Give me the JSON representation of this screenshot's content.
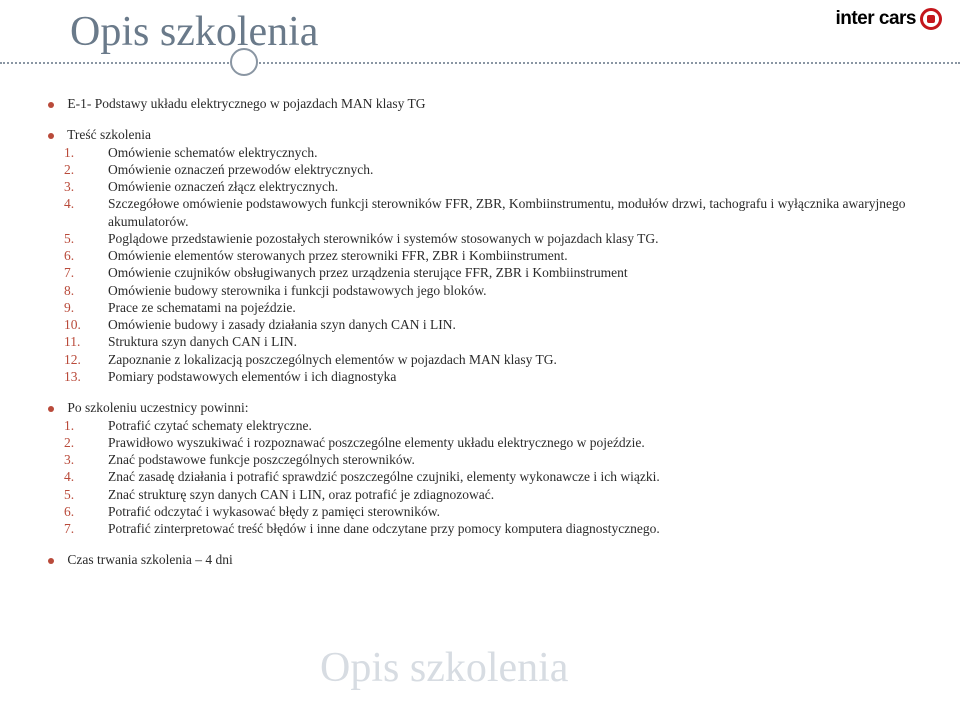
{
  "logo": {
    "text": "inter cars"
  },
  "title": "Opis szkolenia",
  "watermark": "Opis szkolenia",
  "course_heading": "E-1- Podstawy układu elektrycznego w pojazdach MAN klasy TG",
  "section1_head": "Treść szkolenia",
  "section1_items": [
    "Omówienie schematów elektrycznych.",
    "Omówienie oznaczeń przewodów elektrycznych.",
    "Omówienie oznaczeń złącz elektrycznych.",
    "Szczegółowe omówienie podstawowych funkcji sterowników FFR, ZBR, Kombiinstrumentu, modułów drzwi, tachografu i wyłącznika awaryjnego akumulatorów.",
    "Poglądowe przedstawienie pozostałych sterowników i systemów stosowanych w pojazdach klasy TG.",
    "Omówienie elementów sterowanych przez sterowniki FFR, ZBR i Kombiinstrument.",
    "Omówienie czujników obsługiwanych przez urządzenia sterujące FFR, ZBR i Kombiinstrument",
    "Omówienie budowy sterownika i funkcji podstawowych jego bloków.",
    "Prace ze schematami na pojeździe.",
    "Omówienie budowy i zasady działania szyn danych CAN i LIN.",
    "Struktura szyn danych CAN i LIN.",
    "Zapoznanie z lokalizacją poszczególnych elementów w pojazdach MAN klasy TG.",
    "Pomiary podstawowych elementów i ich diagnostyka"
  ],
  "section2_head": "Po szkoleniu uczestnicy powinni:",
  "section2_items": [
    "Potrafić czytać schematy elektryczne.",
    "Prawidłowo wyszukiwać i rozpoznawać poszczególne elementy układu elektrycznego w pojeździe.",
    "Znać podstawowe funkcje poszczególnych sterowników.",
    "Znać zasadę działania i potrafić sprawdzić poszczególne czujniki, elementy wykonawcze i ich wiązki.",
    "Znać strukturę szyn danych CAN i LIN, oraz potrafić je zdiagnozować.",
    "Potrafić odczytać i wykasować błędy z pamięci sterowników.",
    "Potrafić zinterpretować treść błędów i inne dane odczytane przy pomocy komputera diagnostycznego."
  ],
  "duration": "Czas trwania szkolenia – 4 dni",
  "colors": {
    "title": "#6a7a8a",
    "accent": "#b94a3a",
    "rule": "#8a96a3",
    "text": "#2a2a2a",
    "watermark": "#d7dce2",
    "logo_red": "#c4161c"
  }
}
